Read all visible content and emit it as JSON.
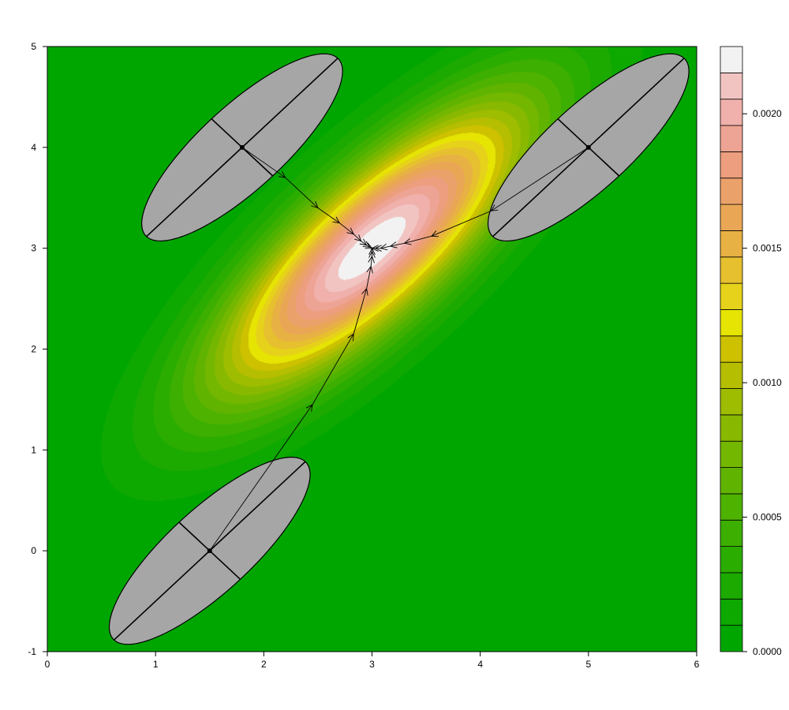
{
  "chart_data": {
    "type": "contour",
    "title": "",
    "xlabel": "",
    "ylabel": "",
    "xlim": [
      0,
      6
    ],
    "ylim": [
      -1,
      5
    ],
    "x_ticks": [
      0,
      1,
      2,
      3,
      4,
      5,
      6
    ],
    "y_ticks": [
      -1,
      0,
      1,
      2,
      3,
      4,
      5
    ],
    "x_tick_labels": [
      "0",
      "1",
      "2",
      "3",
      "4",
      "5",
      "6"
    ],
    "y_tick_labels": [
      "-1",
      "0",
      "1",
      "2",
      "3",
      "4",
      "5"
    ],
    "density": {
      "mean": [
        3.0,
        3.0
      ],
      "sd": [
        1.0,
        1.0
      ],
      "correlation": 0.8,
      "peak": 0.00226
    },
    "colorbar": {
      "min": 0.0,
      "max": 0.00225,
      "levels": 23,
      "tick_values": [
        0.0,
        0.0005,
        0.001,
        0.0015,
        0.002
      ],
      "tick_labels": [
        "0.0000",
        "0.0005",
        "0.0010",
        "0.0015",
        "0.0020"
      ],
      "colors": [
        "#00a600",
        "#0da800",
        "#1caa00",
        "#2bad00",
        "#3caf00",
        "#4eb200",
        "#60b400",
        "#74b700",
        "#88b900",
        "#9ebc00",
        "#b5be00",
        "#cdc100",
        "#e6e402",
        "#e6d21a",
        "#e7c02f",
        "#e8b143",
        "#e9a756",
        "#eba26a",
        "#ec9e7e",
        "#eea494",
        "#f0b0ab",
        "#f1c4c2",
        "#f2f2f2"
      ]
    },
    "start_points": [
      {
        "x": 1.8,
        "y": 4.0,
        "ellipse": {
          "a": 1.25,
          "b": 0.4,
          "angle_deg": 45
        }
      },
      {
        "x": 5.0,
        "y": 4.0,
        "ellipse": {
          "a": 1.25,
          "b": 0.4,
          "angle_deg": 45
        }
      },
      {
        "x": 1.5,
        "y": 0.0,
        "ellipse": {
          "a": 1.25,
          "b": 0.4,
          "angle_deg": 45
        }
      }
    ],
    "paths": [
      {
        "points": [
          [
            1.8,
            4.0
          ],
          [
            2.2,
            3.7
          ],
          [
            2.5,
            3.4
          ],
          [
            2.7,
            3.25
          ],
          [
            2.83,
            3.14
          ],
          [
            2.9,
            3.07
          ],
          [
            2.95,
            3.03
          ],
          [
            2.98,
            3.01
          ],
          [
            3.0,
            3.0
          ]
        ]
      },
      {
        "points": [
          [
            5.0,
            4.0
          ],
          [
            4.1,
            3.37
          ],
          [
            3.55,
            3.12
          ],
          [
            3.3,
            3.05
          ],
          [
            3.17,
            3.02
          ],
          [
            3.08,
            3.0
          ],
          [
            3.03,
            3.0
          ],
          [
            3.0,
            3.0
          ]
        ]
      },
      {
        "points": [
          [
            1.5,
            0.0
          ],
          [
            2.45,
            1.45
          ],
          [
            2.83,
            2.15
          ],
          [
            2.95,
            2.6
          ],
          [
            2.99,
            2.82
          ],
          [
            3.0,
            2.92
          ],
          [
            3.0,
            2.97
          ],
          [
            3.0,
            3.0
          ]
        ]
      }
    ],
    "colors": {
      "ellipse_fill": "#a6a6a6",
      "line": "#000000"
    }
  }
}
